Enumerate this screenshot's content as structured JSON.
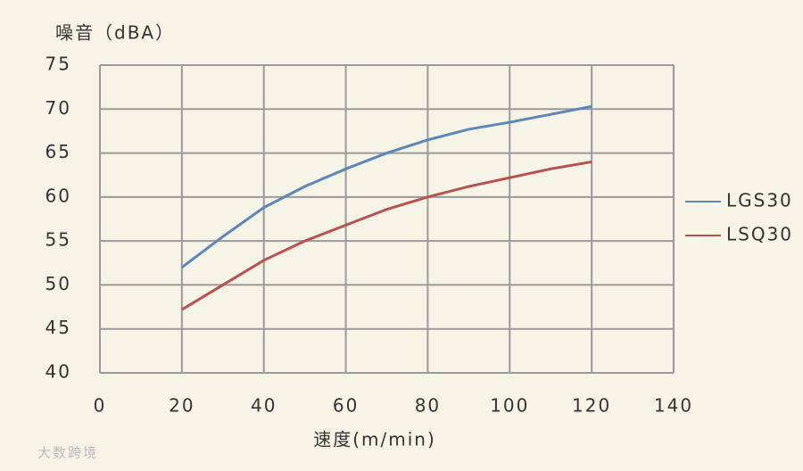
{
  "chart_data": {
    "type": "line",
    "y_label": "噪音（dBA）",
    "x_label": "速度(m/min)",
    "watermark": "大数跨境",
    "x": [
      20,
      30,
      40,
      50,
      60,
      70,
      80,
      90,
      100,
      110,
      120
    ],
    "series": [
      {
        "name": "LGS30",
        "color": "#5b87b9",
        "values": [
          52,
          55.5,
          58.8,
          61.2,
          63.2,
          65,
          66.5,
          67.7,
          68.5,
          69.4,
          70.3
        ]
      },
      {
        "name": "LSQ30",
        "color": "#b9514f",
        "values": [
          47.2,
          50,
          52.8,
          55,
          56.8,
          58.6,
          60,
          61.2,
          62.2,
          63.2,
          64
        ]
      }
    ],
    "xlim": [
      0,
      140
    ],
    "xticks": [
      0,
      20,
      40,
      60,
      80,
      100,
      120,
      140
    ],
    "ylim": [
      40,
      75
    ],
    "yticks": [
      40,
      45,
      50,
      55,
      60,
      65,
      70,
      75
    ],
    "grid": true,
    "legend": "right"
  }
}
